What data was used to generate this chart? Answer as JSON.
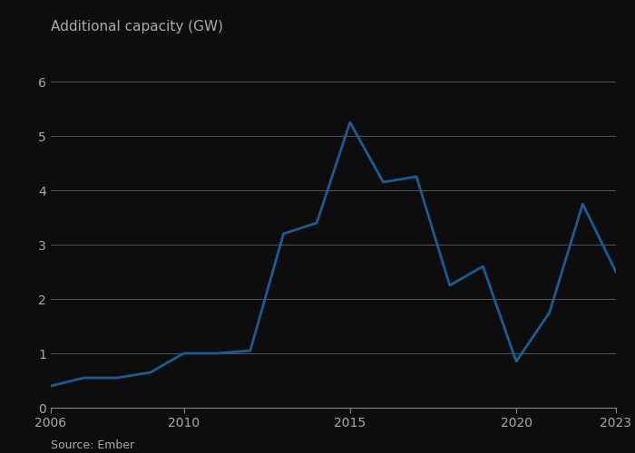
{
  "title": "Additional capacity (GW)",
  "source": "Source: Ember",
  "x_values": [
    2006,
    2007,
    2008,
    2009,
    2010,
    2011,
    2012,
    2013,
    2014,
    2015,
    2016,
    2017,
    2018,
    2019,
    2020,
    2021,
    2022,
    2023
  ],
  "y_values": [
    0.4,
    0.55,
    0.55,
    0.65,
    1.0,
    1.0,
    1.05,
    3.2,
    3.4,
    5.25,
    4.15,
    4.25,
    2.25,
    2.6,
    0.85,
    1.75,
    3.75,
    2.5
  ],
  "line_color": "#1a5c96",
  "line_width": 2.0,
  "background_color": "#0d0d0d",
  "text_color": "#aaaaaa",
  "grid_color": "#555555",
  "spine_bottom_color": "#888888",
  "xlim": [
    2006,
    2023
  ],
  "ylim": [
    0,
    6.5
  ],
  "yticks": [
    0,
    1,
    2,
    3,
    4,
    5,
    6
  ],
  "xticks": [
    2006,
    2010,
    2015,
    2020,
    2023
  ],
  "title_fontsize": 11,
  "source_fontsize": 9,
  "tick_fontsize": 10
}
